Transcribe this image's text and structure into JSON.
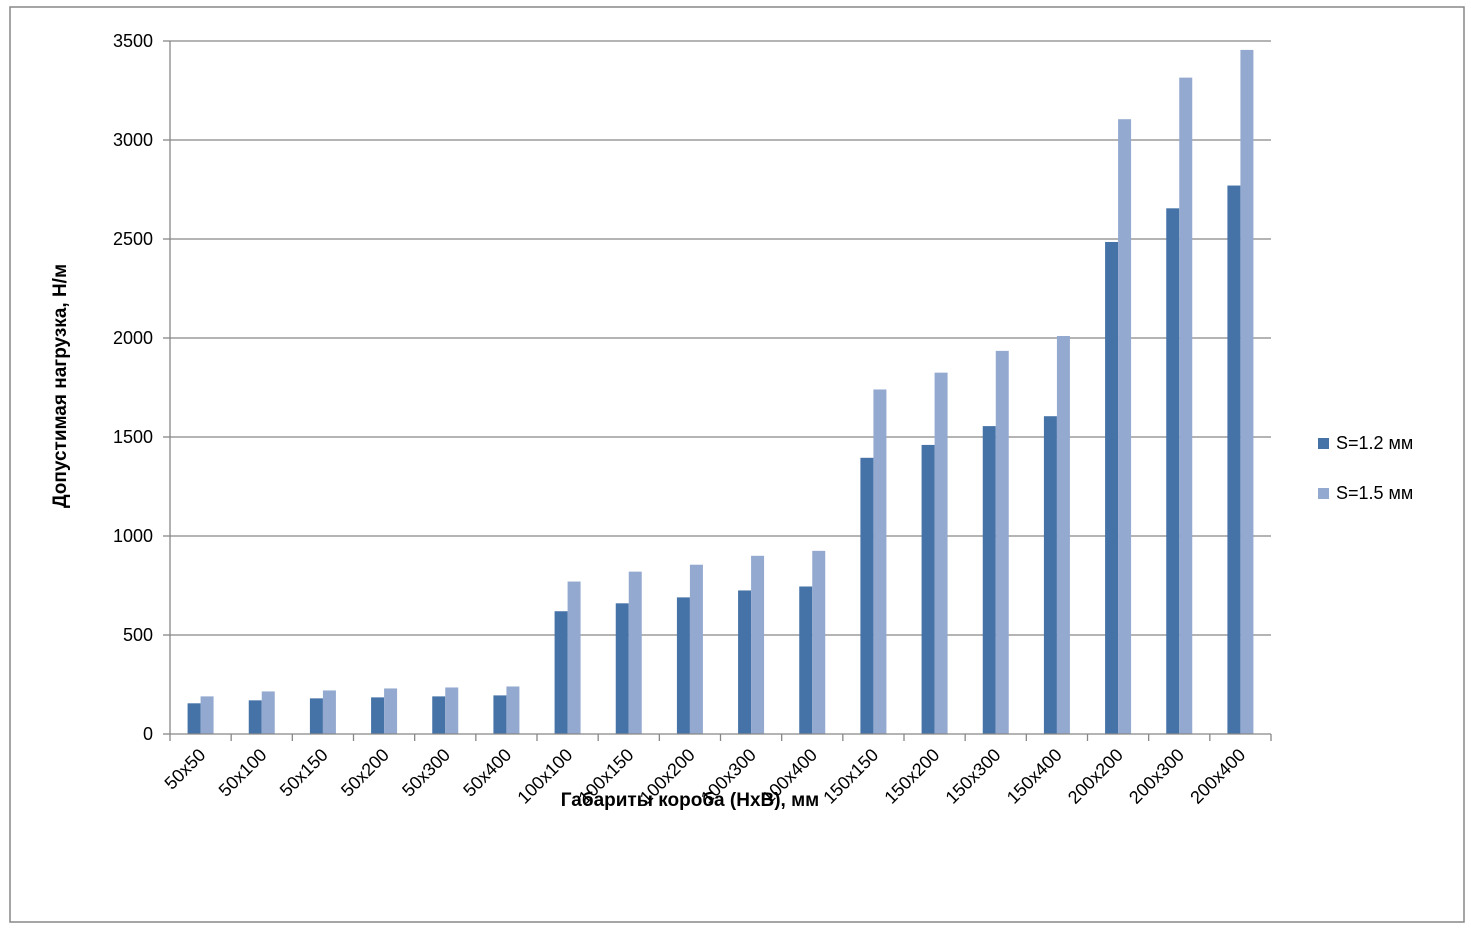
{
  "chart_data": {
    "type": "bar",
    "title": "",
    "xlabel": "Габариты короба (НхВ), мм",
    "ylabel": "Допустимая нагрузка, Н/м",
    "ylim": [
      0,
      3500
    ],
    "yticks": [
      0,
      500,
      1000,
      1500,
      2000,
      2500,
      3000,
      3500
    ],
    "grid": true,
    "legend_position": "right",
    "categories": [
      "50x50",
      "50x100",
      "50x150",
      "50x200",
      "50x300",
      "50x400",
      "100x100",
      "100x150",
      "100x200",
      "100x300",
      "100x400",
      "150x150",
      "150x200",
      "150x300",
      "150x400",
      "200x200",
      "200x300",
      "200x400"
    ],
    "series": [
      {
        "name": "S=1.2 мм",
        "color": "#4572A7",
        "values": [
          155,
          170,
          180,
          185,
          190,
          195,
          620,
          660,
          690,
          725,
          745,
          1395,
          1460,
          1555,
          1605,
          2485,
          2655,
          2770
        ]
      },
      {
        "name": "S=1.5 мм",
        "color": "#93A9CF",
        "values": [
          190,
          215,
          220,
          230,
          235,
          240,
          770,
          820,
          855,
          900,
          925,
          1740,
          1825,
          1935,
          2010,
          3105,
          3315,
          3455
        ]
      }
    ]
  }
}
